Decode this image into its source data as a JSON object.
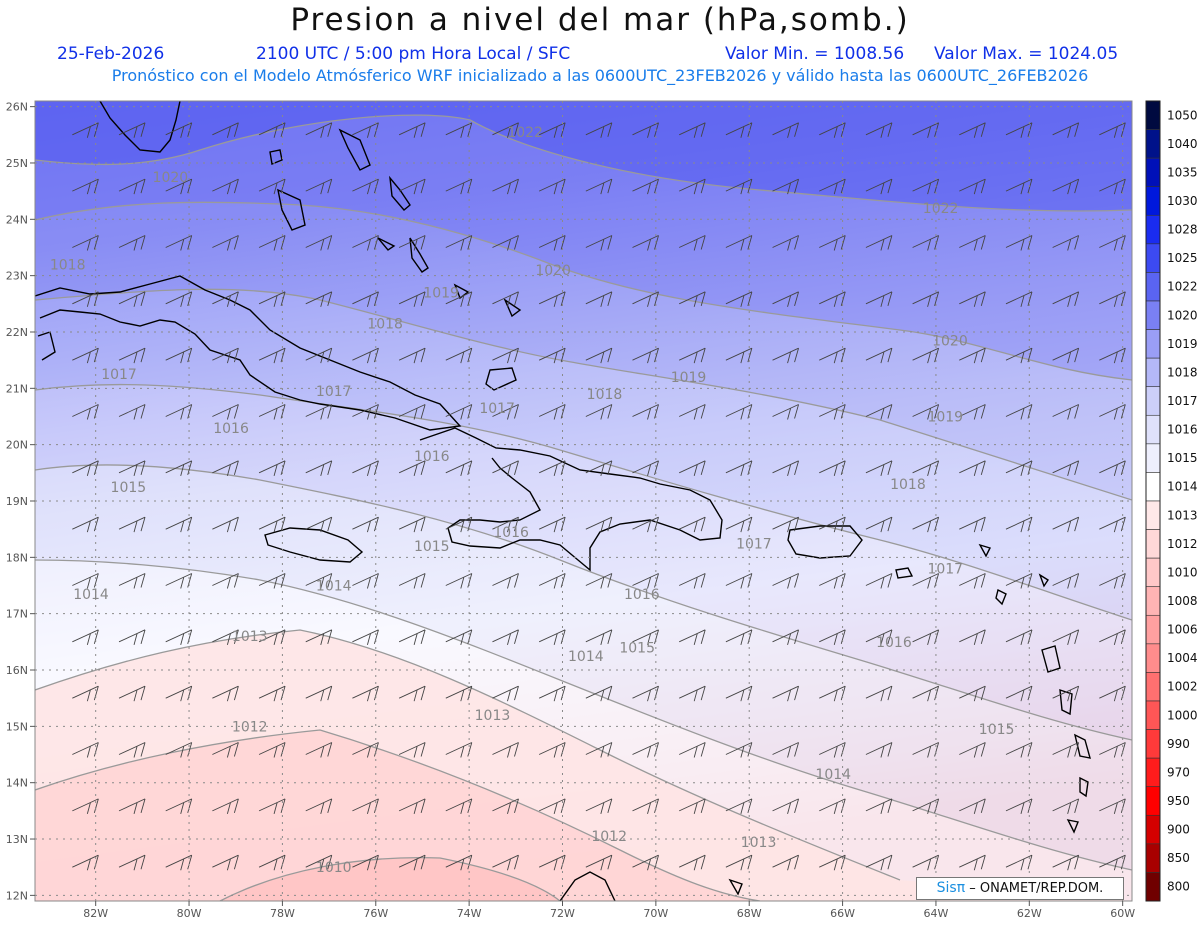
{
  "header": {
    "title": "Presion a nivel del mar (hPa,somb.)",
    "date": "25-Feb-2026",
    "time": "2100 UTC / 5:00 pm Hora Local / SFC",
    "min_label": "Valor Min. = 1008.56",
    "max_label": "Valor Max. = 1024.05",
    "forecast": "Pronóstico con el Modelo Atmósferico WRF inicializado a las 0600UTC_23FEB2026 y válido hasta las  0600UTC_26FEB2026"
  },
  "credit": {
    "sis": "Sisπ",
    "org": "– ONAMET/REP.DOM."
  },
  "axes": {
    "lat_labels": [
      "26N",
      "25N",
      "24N",
      "23N",
      "22N",
      "21N",
      "20N",
      "19N",
      "18N",
      "17N",
      "16N",
      "15N",
      "14N",
      "13N",
      "12N"
    ],
    "lon_labels": [
      "82W",
      "80W",
      "78W",
      "76W",
      "74W",
      "72W",
      "70W",
      "68W",
      "66W",
      "64W",
      "62W",
      "60W"
    ]
  },
  "colorbar": {
    "levels": [
      "1050",
      "1040",
      "1035",
      "1030",
      "1028",
      "1025",
      "1022",
      "1020",
      "1019",
      "1018",
      "1017",
      "1016",
      "1015",
      "1014",
      "1013",
      "1012",
      "1010",
      "1008",
      "1006",
      "1004",
      "1002",
      "1000",
      "990",
      "970",
      "950",
      "900",
      "850",
      "800"
    ],
    "colors": [
      "#000a40",
      "#00128a",
      "#0010b8",
      "#0018dc",
      "#1a2cf0",
      "#3c4af2",
      "#5a64f2",
      "#7a80f4",
      "#9a9ef6",
      "#b4b8f8",
      "#cccff9",
      "#dfe1fb",
      "#eeeffd",
      "#ffffff",
      "#ffe8e8",
      "#ffd8d8",
      "#ffc8c8",
      "#ffb4b4",
      "#ffa0a0",
      "#ff8c8c",
      "#ff7070",
      "#ff5656",
      "#ff3a3a",
      "#ff1c1c",
      "#ff0000",
      "#d40000",
      "#a80000",
      "#700000"
    ]
  },
  "contour_labels": [
    {
      "text": "1022",
      "lon": -72.8,
      "lat": 25.55
    },
    {
      "text": "1022",
      "lon": -63.9,
      "lat": 24.2
    },
    {
      "text": "1020",
      "lon": -80.4,
      "lat": 24.75
    },
    {
      "text": "1020",
      "lon": -72.2,
      "lat": 23.1
    },
    {
      "text": "1020",
      "lon": -63.7,
      "lat": 21.85
    },
    {
      "text": "1019",
      "lon": -74.6,
      "lat": 22.7
    },
    {
      "text": "1019",
      "lon": -69.3,
      "lat": 21.2
    },
    {
      "text": "1019",
      "lon": -63.8,
      "lat": 20.5
    },
    {
      "text": "1018",
      "lon": -82.6,
      "lat": 23.2
    },
    {
      "text": "1018",
      "lon": -75.8,
      "lat": 22.15
    },
    {
      "text": "1018",
      "lon": -71.1,
      "lat": 20.9
    },
    {
      "text": "1018",
      "lon": -64.6,
      "lat": 19.3
    },
    {
      "text": "1017",
      "lon": -81.5,
      "lat": 21.25
    },
    {
      "text": "1017",
      "lon": -76.9,
      "lat": 20.95
    },
    {
      "text": "1017",
      "lon": -73.4,
      "lat": 20.65
    },
    {
      "text": "1017",
      "lon": -67.9,
      "lat": 18.25
    },
    {
      "text": "1017",
      "lon": -63.8,
      "lat": 17.8
    },
    {
      "text": "1016",
      "lon": -79.1,
      "lat": 20.3
    },
    {
      "text": "1016",
      "lon": -74.8,
      "lat": 19.8
    },
    {
      "text": "1016",
      "lon": -73.1,
      "lat": 18.45
    },
    {
      "text": "1016",
      "lon": -70.3,
      "lat": 17.35
    },
    {
      "text": "1016",
      "lon": -64.9,
      "lat": 16.5
    },
    {
      "text": "1015",
      "lon": -81.3,
      "lat": 19.25
    },
    {
      "text": "1015",
      "lon": -74.8,
      "lat": 18.2
    },
    {
      "text": "1015",
      "lon": -70.4,
      "lat": 16.4
    },
    {
      "text": "1015",
      "lon": -62.7,
      "lat": 14.95
    },
    {
      "text": "1014",
      "lon": -82.1,
      "lat": 17.35
    },
    {
      "text": "1014",
      "lon": -76.9,
      "lat": 17.5
    },
    {
      "text": "1014",
      "lon": -71.5,
      "lat": 16.25
    },
    {
      "text": "1014",
      "lon": -66.2,
      "lat": 14.15
    },
    {
      "text": "1013",
      "lon": -78.7,
      "lat": 16.6
    },
    {
      "text": "1013",
      "lon": -73.5,
      "lat": 15.2
    },
    {
      "text": "1013",
      "lon": -67.8,
      "lat": 12.95
    },
    {
      "text": "1012",
      "lon": -78.7,
      "lat": 15.0
    },
    {
      "text": "1012",
      "lon": -71.0,
      "lat": 13.05
    },
    {
      "text": "1010",
      "lon": -76.9,
      "lat": 12.5
    }
  ]
}
